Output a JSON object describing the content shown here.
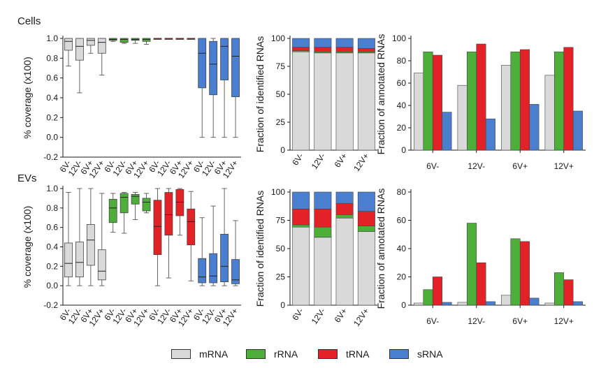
{
  "sections": {
    "top": "Cells",
    "bottom": "EVs"
  },
  "colors": {
    "mRNA": "#d9d9d9",
    "rRNA": "#4daf3a",
    "tRNA": "#e22227",
    "sRNA": "#4a7fcf",
    "stroke": "#333333"
  },
  "legend": [
    {
      "label": "mRNA",
      "key": "mRNA"
    },
    {
      "label": "rRNA",
      "key": "rRNA"
    },
    {
      "label": "tRNA",
      "key": "tRNA"
    },
    {
      "label": "sRNA",
      "key": "sRNA"
    }
  ],
  "chart_data": [
    {
      "id": "cells-coverage",
      "type": "box",
      "ylabel": "% coverage (x100)",
      "ylim": [
        -0.2,
        1.0
      ],
      "yticks": [
        "-0.2",
        "0.0",
        "0.2",
        "0.4",
        "0.6",
        "0.8",
        "1.0"
      ],
      "categories": [
        "6V-",
        "12V-",
        "6V+",
        "12V+",
        "6V-",
        "12V-",
        "6V+",
        "12V+",
        "6V-",
        "12V-",
        "6V+",
        "12V+",
        "6V-",
        "12V-",
        "6V+",
        "12V+"
      ],
      "groups": [
        "mRNA",
        "mRNA",
        "mRNA",
        "mRNA",
        "rRNA",
        "rRNA",
        "rRNA",
        "rRNA",
        "tRNA",
        "tRNA",
        "tRNA",
        "tRNA",
        "sRNA",
        "sRNA",
        "sRNA",
        "sRNA"
      ],
      "boxes": [
        {
          "min": 0.72,
          "q1": 0.88,
          "median": 0.97,
          "q3": 1.0,
          "max": 1.0
        },
        {
          "min": 0.45,
          "q1": 0.78,
          "median": 0.92,
          "q3": 1.0,
          "max": 1.0
        },
        {
          "min": 0.85,
          "q1": 0.93,
          "median": 0.98,
          "q3": 1.0,
          "max": 1.0
        },
        {
          "min": 0.63,
          "q1": 0.85,
          "median": 0.96,
          "q3": 1.0,
          "max": 1.0
        },
        {
          "min": 0.97,
          "q1": 0.98,
          "median": 0.99,
          "q3": 1.0,
          "max": 1.0
        },
        {
          "min": 0.95,
          "q1": 0.96,
          "median": 0.99,
          "q3": 1.0,
          "max": 1.0
        },
        {
          "min": 0.95,
          "q1": 0.98,
          "median": 0.99,
          "q3": 1.0,
          "max": 1.0
        },
        {
          "min": 0.94,
          "q1": 0.97,
          "median": 0.99,
          "q3": 1.0,
          "max": 1.0
        },
        {
          "min": 1.0,
          "q1": 1.0,
          "median": 1.0,
          "q3": 1.0,
          "max": 1.0
        },
        {
          "min": 1.0,
          "q1": 1.0,
          "median": 1.0,
          "q3": 1.0,
          "max": 1.0
        },
        {
          "min": 1.0,
          "q1": 1.0,
          "median": 1.0,
          "q3": 1.0,
          "max": 1.0
        },
        {
          "min": 1.0,
          "q1": 1.0,
          "median": 1.0,
          "q3": 1.0,
          "max": 1.0
        },
        {
          "min": 0.0,
          "q1": 0.5,
          "median": 0.85,
          "q3": 1.0,
          "max": 1.0
        },
        {
          "min": 0.0,
          "q1": 0.43,
          "median": 0.74,
          "q3": 0.97,
          "max": 1.0
        },
        {
          "min": 0.0,
          "q1": 0.58,
          "median": 0.92,
          "q3": 1.0,
          "max": 1.0
        },
        {
          "min": 0.0,
          "q1": 0.41,
          "median": 0.82,
          "q3": 1.0,
          "max": 1.0
        }
      ]
    },
    {
      "id": "cells-fraction",
      "type": "stacked-bar",
      "ylabel": "Fraction of identified RNAs",
      "ylim": [
        0,
        100
      ],
      "yticks": [
        "0",
        "25",
        "50",
        "75",
        "100"
      ],
      "categories": [
        "6V-",
        "12V-",
        "6V+",
        "12V+"
      ],
      "series": [
        {
          "name": "mRNA",
          "values": [
            88,
            87,
            87,
            87
          ]
        },
        {
          "name": "rRNA",
          "values": [
            1,
            1,
            1,
            1
          ]
        },
        {
          "name": "tRNA",
          "values": [
            3,
            4,
            4,
            3
          ]
        },
        {
          "name": "sRNA",
          "values": [
            8,
            8,
            8,
            9
          ]
        }
      ]
    },
    {
      "id": "cells-annotated",
      "type": "bar",
      "ylabel": "Fraction of annotated RNAs",
      "ylim": [
        0,
        100
      ],
      "yticks": [
        "0",
        "20",
        "40",
        "60",
        "80",
        "100"
      ],
      "categories": [
        "6V-",
        "12V-",
        "6V+",
        "12V+"
      ],
      "series": [
        {
          "name": "mRNA",
          "values": [
            69,
            58,
            76,
            67
          ]
        },
        {
          "name": "rRNA",
          "values": [
            88,
            88,
            88,
            88
          ]
        },
        {
          "name": "tRNA",
          "values": [
            85,
            95,
            90,
            92
          ]
        },
        {
          "name": "sRNA",
          "values": [
            34,
            28,
            41,
            35
          ]
        }
      ]
    },
    {
      "id": "evs-coverage",
      "type": "box",
      "ylabel": "% coverage (x100)",
      "ylim": [
        -0.2,
        1.0
      ],
      "yticks": [
        "-0.2",
        "0.0",
        "0.2",
        "0.4",
        "0.6",
        "0.8",
        "1.0"
      ],
      "categories": [
        "6V-",
        "12V-",
        "6V+",
        "12V+",
        "6V-",
        "12V-",
        "6V+",
        "12V+",
        "6V-",
        "12V-",
        "6V+",
        "12V+",
        "6V-",
        "12V-",
        "6V+",
        "12V+"
      ],
      "groups": [
        "mRNA",
        "mRNA",
        "mRNA",
        "mRNA",
        "rRNA",
        "rRNA",
        "rRNA",
        "rRNA",
        "tRNA",
        "tRNA",
        "tRNA",
        "tRNA",
        "sRNA",
        "sRNA",
        "sRNA",
        "sRNA"
      ],
      "boxes": [
        {
          "min": 0.0,
          "q1": 0.09,
          "median": 0.23,
          "q3": 0.44,
          "max": 0.96
        },
        {
          "min": 0.0,
          "q1": 0.09,
          "median": 0.24,
          "q3": 0.45,
          "max": 1.0
        },
        {
          "min": 0.0,
          "q1": 0.21,
          "median": 0.47,
          "q3": 0.63,
          "max": 1.0
        },
        {
          "min": 0.0,
          "q1": 0.06,
          "median": 0.15,
          "q3": 0.37,
          "max": 0.95
        },
        {
          "min": 0.55,
          "q1": 0.65,
          "median": 0.8,
          "q3": 0.89,
          "max": 0.95
        },
        {
          "min": 0.54,
          "q1": 0.75,
          "median": 0.91,
          "q3": 0.95,
          "max": 0.96
        },
        {
          "min": 0.68,
          "q1": 0.84,
          "median": 0.92,
          "q3": 0.94,
          "max": 0.96
        },
        {
          "min": 0.75,
          "q1": 0.77,
          "median": 0.86,
          "q3": 0.9,
          "max": 0.95
        },
        {
          "min": 0.0,
          "q1": 0.32,
          "median": 0.61,
          "q3": 0.88,
          "max": 1.0
        },
        {
          "min": 0.08,
          "q1": 0.52,
          "median": 0.73,
          "q3": 0.96,
          "max": 1.0
        },
        {
          "min": 0.52,
          "q1": 0.72,
          "median": 0.86,
          "q3": 0.99,
          "max": 1.0
        },
        {
          "min": 0.05,
          "q1": 0.42,
          "median": 0.66,
          "q3": 0.79,
          "max": 0.97
        },
        {
          "min": 0.0,
          "q1": 0.03,
          "median": 0.09,
          "q3": 0.28,
          "max": 0.7
        },
        {
          "min": 0.0,
          "q1": 0.03,
          "median": 0.1,
          "q3": 0.33,
          "max": 0.82
        },
        {
          "min": 0.0,
          "q1": 0.04,
          "median": 0.2,
          "q3": 0.53,
          "max": 1.0
        },
        {
          "min": 0.0,
          "q1": 0.02,
          "median": 0.06,
          "q3": 0.27,
          "max": 0.67
        }
      ]
    },
    {
      "id": "evs-fraction",
      "type": "stacked-bar",
      "ylabel": "Fraction of identified RNAs",
      "ylim": [
        0,
        100
      ],
      "yticks": [
        "0",
        "25",
        "50",
        "75",
        "100"
      ],
      "categories": [
        "6V-",
        "12V-",
        "6V+",
        "12V+"
      ],
      "series": [
        {
          "name": "mRNA",
          "values": [
            69,
            60,
            77,
            65
          ]
        },
        {
          "name": "rRNA",
          "values": [
            2,
            9,
            3,
            5
          ]
        },
        {
          "name": "tRNA",
          "values": [
            14,
            16,
            10,
            13
          ]
        },
        {
          "name": "sRNA",
          "values": [
            15,
            15,
            10,
            17
          ]
        }
      ]
    },
    {
      "id": "evs-annotated",
      "type": "bar",
      "ylabel": "Fraction of annotated RNAs",
      "ylim": [
        0,
        80
      ],
      "yticks": [
        "0",
        "20",
        "40",
        "60",
        "80"
      ],
      "categories": [
        "6V-",
        "12V-",
        "6V+",
        "12V+"
      ],
      "series": [
        {
          "name": "mRNA",
          "values": [
            1.5,
            2,
            7,
            1.5
          ]
        },
        {
          "name": "rRNA",
          "values": [
            11,
            58,
            47,
            23
          ]
        },
        {
          "name": "tRNA",
          "values": [
            20,
            30,
            45,
            18
          ]
        },
        {
          "name": "sRNA",
          "values": [
            2,
            2.5,
            5,
            2.5
          ]
        }
      ]
    }
  ]
}
